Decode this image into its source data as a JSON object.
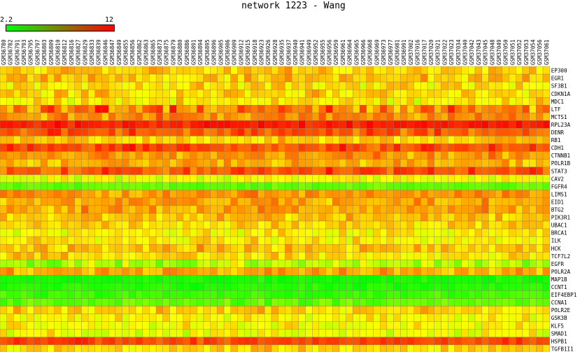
{
  "chart_data": {
    "type": "heatmap",
    "title": "network 1223 - Wang",
    "colorscale": {
      "min": 2.2,
      "max": 12,
      "min_label": "2.2",
      "max_label": "12",
      "low_color": "#00ff00",
      "high_color": "#ff0000"
    },
    "columns": [
      "GSM36780",
      "GSM36782",
      "GSM36791",
      "GSM36793",
      "GSM36795",
      "GSM36797",
      "GSM36803",
      "GSM36809",
      "GSM36810",
      "GSM36812",
      "GSM36816",
      "GSM36827",
      "GSM36829",
      "GSM36833",
      "GSM36839",
      "GSM36846",
      "GSM36847",
      "GSM36849",
      "GSM36855",
      "GSM36856",
      "GSM36862",
      "GSM36863",
      "GSM36865",
      "GSM36873",
      "GSM36875",
      "GSM36879",
      "GSM36880",
      "GSM36886",
      "GSM36891",
      "GSM36894",
      "GSM36895",
      "GSM36896",
      "GSM36905",
      "GSM36906",
      "GSM36909",
      "GSM36912",
      "GSM36915",
      "GSM36918",
      "GSM36923",
      "GSM36926",
      "GSM36928",
      "GSM36935",
      "GSM36937",
      "GSM36940",
      "GSM36941",
      "GSM36949",
      "GSM36952",
      "GSM36955",
      "GSM36956",
      "GSM36959",
      "GSM36961",
      "GSM36964",
      "GSM36965",
      "GSM36966",
      "GSM36968",
      "GSM36969",
      "GSM36973",
      "GSM36977",
      "GSM36981",
      "GSM36991",
      "GSM37002",
      "GSM37016",
      "GSM37017",
      "GSM37020",
      "GSM37021",
      "GSM37022",
      "GSM37023",
      "GSM37034",
      "GSM37040",
      "GSM37042",
      "GSM37043",
      "GSM37045",
      "GSM37048",
      "GSM37049",
      "GSM37050",
      "GSM37051",
      "GSM37052",
      "GSM37053",
      "GSM37054",
      "GSM37056",
      "GSM37061"
    ],
    "rows": [
      "EP300",
      "EGR1",
      "SF3B1",
      "CDKN1A",
      "MDC1",
      "LTF",
      "MCTS1",
      "RPL23A",
      "DENR",
      "RB1",
      "CDH1",
      "CTNNB1",
      "POLR1B",
      "STAT3",
      "CAV2",
      "FGFR4",
      "LIMS1",
      "EID1",
      "BTG2",
      "PIK3R1",
      "UBAC1",
      "BRCA1",
      "ILK",
      "HCK",
      "TCF7L2",
      "EGFR",
      "POLR2A",
      "MAP1B",
      "CCNT1",
      "EIF4EBP1",
      "CCNA1",
      "POLR2E",
      "GSK3B",
      "KLF5",
      "SMAD1",
      "HSPB1",
      "TGFB1I1"
    ],
    "row_levels": [
      8.1,
      8.2,
      7.7,
      7.9,
      7.5,
      9.6,
      9.3,
      11.5,
      10.3,
      8.1,
      10.6,
      9.0,
      8.6,
      10.4,
      6.7,
      4.0,
      9.1,
      8.7,
      8.9,
      8.3,
      7.8,
      7.2,
      7.4,
      8.3,
      7.8,
      5.6,
      8.7,
      2.6,
      2.8,
      3.3,
      4.1,
      8.0,
      7.3,
      7.1,
      7.0,
      10.7,
      7.8
    ],
    "row_spread": [
      1.0,
      1.0,
      1.0,
      1.0,
      1.0,
      1.6,
      1.0,
      0.5,
      0.9,
      0.8,
      0.9,
      0.9,
      0.9,
      0.9,
      0.9,
      0.6,
      0.8,
      0.9,
      0.9,
      0.9,
      0.9,
      1.0,
      0.9,
      1.0,
      1.0,
      1.4,
      0.9,
      0.4,
      0.4,
      0.5,
      0.7,
      0.9,
      0.9,
      0.9,
      1.0,
      0.6,
      0.9
    ]
  }
}
